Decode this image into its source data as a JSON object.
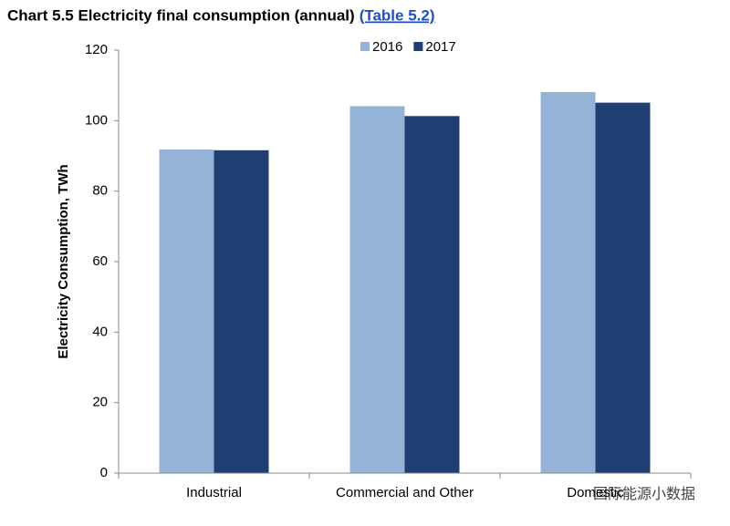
{
  "chart_data": {
    "type": "bar",
    "title": "Chart 5.5 Electricity final consumption (annual)",
    "source": "(Table 5.2)",
    "y_label": "Electricity Consumption, TWh",
    "categories": [
      "Industrial",
      "Commercial and Other",
      "Domestic"
    ],
    "series": [
      {
        "name": "2016",
        "color": "#95b3d7",
        "values": [
          91.8,
          104.1,
          108.1
        ]
      },
      {
        "name": "2017",
        "color": "#1f3f73",
        "values": [
          91.6,
          101.3,
          105.1
        ]
      }
    ],
    "ylim": [
      0,
      120
    ],
    "yticks": [
      0,
      20,
      40,
      60,
      80,
      100,
      120
    ],
    "grid": false,
    "legend": "top",
    "watermark": "国际能源小数据"
  }
}
